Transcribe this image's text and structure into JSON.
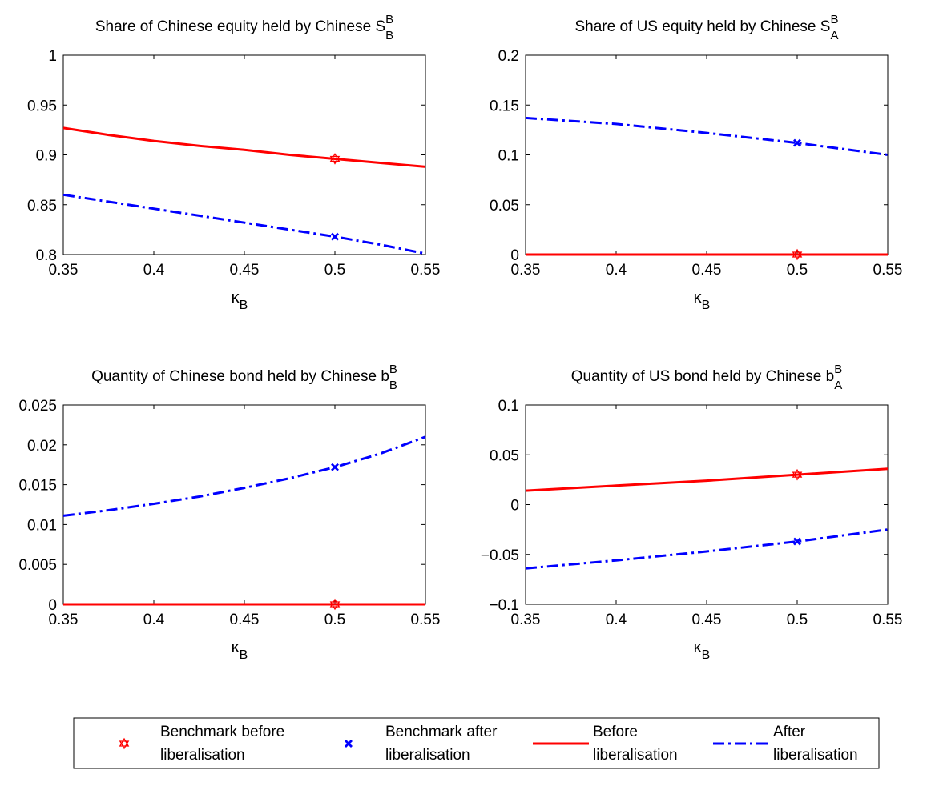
{
  "chart_data": [
    {
      "type": "line",
      "title": "Share of Chinese equity held by Chinese",
      "title_sym": {
        "base": "S",
        "sup": "B",
        "sub": "B"
      },
      "xlabel": {
        "base": "κ",
        "sub": "B"
      },
      "xlim": [
        0.35,
        0.55
      ],
      "ylim": [
        0.8,
        1
      ],
      "xticks": [
        0.35,
        0.4,
        0.45,
        0.5,
        0.55
      ],
      "xtick_labels": [
        "0.35",
        "0.4",
        "0.45",
        "0.5",
        "0.55"
      ],
      "yticks": [
        0.8,
        0.85,
        0.9,
        0.95,
        1
      ],
      "ytick_labels": [
        "0.8",
        "0.85",
        "0.9",
        "0.95",
        "1"
      ],
      "x": [
        0.35,
        0.375,
        0.4,
        0.425,
        0.45,
        0.475,
        0.5,
        0.525,
        0.55
      ],
      "series": [
        {
          "id": "before",
          "values": [
            0.927,
            0.92,
            0.914,
            0.909,
            0.905,
            0.9,
            0.896,
            0.892,
            0.888
          ]
        },
        {
          "id": "after",
          "values": [
            0.86,
            0.853,
            0.846,
            0.839,
            0.832,
            0.825,
            0.818,
            0.81,
            0.801
          ]
        }
      ],
      "markers": [
        {
          "series": "before",
          "x": 0.5,
          "y": 0.896
        },
        {
          "series": "after",
          "x": 0.5,
          "y": 0.818
        }
      ]
    },
    {
      "type": "line",
      "title": "Share of US equity held by Chinese",
      "title_sym": {
        "base": "S",
        "sup": "B",
        "sub": "A"
      },
      "xlabel": {
        "base": "κ",
        "sub": "B"
      },
      "xlim": [
        0.35,
        0.55
      ],
      "ylim": [
        0,
        0.2
      ],
      "xticks": [
        0.35,
        0.4,
        0.45,
        0.5,
        0.55
      ],
      "xtick_labels": [
        "0.35",
        "0.4",
        "0.45",
        "0.5",
        "0.55"
      ],
      "yticks": [
        0,
        0.05,
        0.1,
        0.15,
        0.2
      ],
      "ytick_labels": [
        "0",
        "0.05",
        "0.1",
        "0.15",
        "0.2"
      ],
      "x": [
        0.35,
        0.4,
        0.45,
        0.5,
        0.55
      ],
      "series": [
        {
          "id": "before",
          "values": [
            0,
            0,
            0,
            0,
            0
          ]
        },
        {
          "id": "after",
          "values": [
            0.137,
            0.131,
            0.122,
            0.112,
            0.1
          ]
        }
      ],
      "markers": [
        {
          "series": "before",
          "x": 0.5,
          "y": 0
        },
        {
          "series": "after",
          "x": 0.5,
          "y": 0.112
        }
      ]
    },
    {
      "type": "line",
      "title": "Quantity of Chinese bond held by Chinese",
      "title_sym": {
        "base": "b",
        "sup": "B",
        "sub": "B"
      },
      "xlabel": {
        "base": "κ",
        "sub": "B"
      },
      "xlim": [
        0.35,
        0.55
      ],
      "ylim": [
        0,
        0.025
      ],
      "xticks": [
        0.35,
        0.4,
        0.45,
        0.5,
        0.55
      ],
      "xtick_labels": [
        "0.35",
        "0.4",
        "0.45",
        "0.5",
        "0.55"
      ],
      "yticks": [
        0,
        0.005,
        0.01,
        0.015,
        0.02,
        0.025
      ],
      "ytick_labels": [
        "0",
        "0.005",
        "0.01",
        "0.015",
        "0.02",
        "0.025"
      ],
      "x": [
        0.35,
        0.375,
        0.4,
        0.425,
        0.45,
        0.475,
        0.5,
        0.525,
        0.55
      ],
      "series": [
        {
          "id": "before",
          "values": [
            0,
            0,
            0,
            0,
            0,
            0,
            0,
            0,
            0
          ]
        },
        {
          "id": "after",
          "values": [
            0.0111,
            0.0118,
            0.0126,
            0.0135,
            0.0146,
            0.0158,
            0.0172,
            0.0189,
            0.021
          ]
        }
      ],
      "markers": [
        {
          "series": "before",
          "x": 0.5,
          "y": 0
        },
        {
          "series": "after",
          "x": 0.5,
          "y": 0.0172
        }
      ]
    },
    {
      "type": "line",
      "title": "Quantity of US bond held by Chinese",
      "title_sym": {
        "base": "b",
        "sup": "B",
        "sub": "A"
      },
      "xlabel": {
        "base": "κ",
        "sub": "B"
      },
      "xlim": [
        0.35,
        0.55
      ],
      "ylim": [
        -0.1,
        0.1
      ],
      "xticks": [
        0.35,
        0.4,
        0.45,
        0.5,
        0.55
      ],
      "xtick_labels": [
        "0.35",
        "0.4",
        "0.45",
        "0.5",
        "0.55"
      ],
      "yticks": [
        -0.1,
        -0.05,
        0,
        0.05,
        0.1
      ],
      "ytick_labels": [
        "−0.1",
        "−0.05",
        "0",
        "0.05",
        "0.1"
      ],
      "x": [
        0.35,
        0.4,
        0.45,
        0.5,
        0.55
      ],
      "series": [
        {
          "id": "before",
          "values": [
            0.014,
            0.019,
            0.024,
            0.03,
            0.036
          ]
        },
        {
          "id": "after",
          "values": [
            -0.064,
            -0.056,
            -0.047,
            -0.037,
            -0.025
          ]
        }
      ],
      "markers": [
        {
          "series": "before",
          "x": 0.5,
          "y": 0.03
        },
        {
          "series": "after",
          "x": 0.5,
          "y": -0.037
        }
      ]
    }
  ],
  "legend": {
    "placement": "bottom-center",
    "entries": [
      {
        "key": "benchmark_before",
        "line1": "Benchmark before",
        "line2": "liberalisation"
      },
      {
        "key": "benchmark_after",
        "line1": "Benchmark after",
        "line2": "liberalisation"
      },
      {
        "key": "before",
        "line1": "Before",
        "line2": "liberalisation"
      },
      {
        "key": "after",
        "line1": "After",
        "line2": "liberalisation"
      }
    ]
  },
  "colors": {
    "before": "#ff0000",
    "after": "#0000ff",
    "axes": "#000000"
  }
}
